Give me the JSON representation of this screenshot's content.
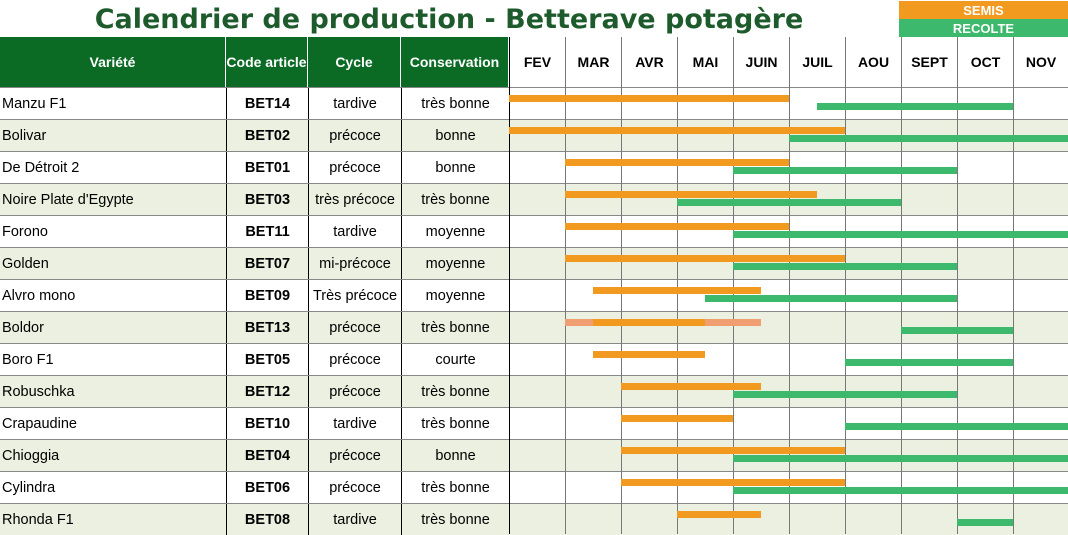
{
  "title": "Calendrier de production - Betterave potagère",
  "legend": {
    "semis": "SEMIS",
    "recolte": "RECOLTE",
    "semis_color": "#f29a1f",
    "recolte_color": "#3cb96c"
  },
  "headers": {
    "variete": "Variété",
    "code": "Code article",
    "cycle": "Cycle",
    "conservation": "Conservation"
  },
  "months": [
    "FEV",
    "MAR",
    "AVR",
    "MAI",
    "JUIN",
    "JUIL",
    "AOU",
    "SEPT",
    "OCT",
    "NOV"
  ],
  "chart_data": {
    "type": "gantt",
    "unit": "month index (0 = start of FEV, 10 = end of NOV)",
    "rows": [
      {
        "variete": "Manzu F1",
        "code": "BET14",
        "cycle": "tardive",
        "conservation": "très bonne",
        "semis": [
          [
            0,
            5
          ]
        ],
        "recolte": [
          [
            5.5,
            9
          ]
        ]
      },
      {
        "variete": "Bolivar",
        "code": "BET02",
        "cycle": "précoce",
        "conservation": "bonne",
        "semis": [
          [
            0,
            6
          ]
        ],
        "recolte": [
          [
            5,
            10
          ]
        ]
      },
      {
        "variete": "De Détroit 2",
        "code": "BET01",
        "cycle": "précoce",
        "conservation": "bonne",
        "semis": [
          [
            1,
            5
          ]
        ],
        "recolte": [
          [
            4,
            8
          ]
        ]
      },
      {
        "variete": "Noire Plate d'Egypte",
        "code": "BET03",
        "cycle": "très précoce",
        "conservation": "très bonne",
        "semis": [
          [
            1,
            5.5
          ]
        ],
        "recolte": [
          [
            3,
            7
          ]
        ]
      },
      {
        "variete": "Forono",
        "code": "BET11",
        "cycle": "tardive",
        "conservation": "moyenne",
        "semis": [
          [
            1,
            5
          ]
        ],
        "recolte": [
          [
            4,
            10
          ]
        ]
      },
      {
        "variete": "Golden",
        "code": "BET07",
        "cycle": "mi-précoce",
        "conservation": "moyenne",
        "semis": [
          [
            1,
            6
          ]
        ],
        "recolte": [
          [
            4,
            8
          ]
        ]
      },
      {
        "variete": "Alvro mono",
        "code": "BET09",
        "cycle": "Très précoce",
        "conservation": "moyenne",
        "semis": [
          [
            1.5,
            4.5
          ]
        ],
        "recolte": [
          [
            3.5,
            8
          ]
        ]
      },
      {
        "variete": "Boldor",
        "code": "BET13",
        "cycle": "précoce",
        "conservation": "très bonne",
        "semis": [
          [
            1,
            4.5
          ]
        ],
        "semis_light": [
          [
            1,
            1.5
          ],
          [
            3.5,
            4.5
          ]
        ],
        "recolte": [
          [
            7,
            9
          ]
        ]
      },
      {
        "variete": "Boro F1",
        "code": "BET05",
        "cycle": "précoce",
        "conservation": "courte",
        "semis": [
          [
            1.5,
            3.5
          ]
        ],
        "recolte": [
          [
            6,
            9
          ]
        ]
      },
      {
        "variete": "Robuschka",
        "code": "BET12",
        "cycle": "précoce",
        "conservation": "très bonne",
        "semis": [
          [
            2,
            4.5
          ]
        ],
        "recolte": [
          [
            4,
            8
          ]
        ]
      },
      {
        "variete": "Crapaudine",
        "code": "BET10",
        "cycle": "tardive",
        "conservation": "très bonne",
        "semis": [
          [
            2,
            4
          ]
        ],
        "recolte": [
          [
            6,
            10
          ]
        ]
      },
      {
        "variete": "Chioggia",
        "code": "BET04",
        "cycle": "précoce",
        "conservation": "bonne",
        "semis": [
          [
            2,
            6
          ]
        ],
        "recolte": [
          [
            4,
            10
          ]
        ]
      },
      {
        "variete": "Cylindra",
        "code": "BET06",
        "cycle": "précoce",
        "conservation": "très bonne",
        "semis": [
          [
            2,
            6
          ]
        ],
        "recolte": [
          [
            4,
            10
          ]
        ]
      },
      {
        "variete": "Rhonda F1",
        "code": "BET08",
        "cycle": "tardive",
        "conservation": "très bonne",
        "semis": [
          [
            3,
            4.5
          ]
        ],
        "recolte": [
          [
            8,
            9
          ]
        ]
      }
    ]
  }
}
